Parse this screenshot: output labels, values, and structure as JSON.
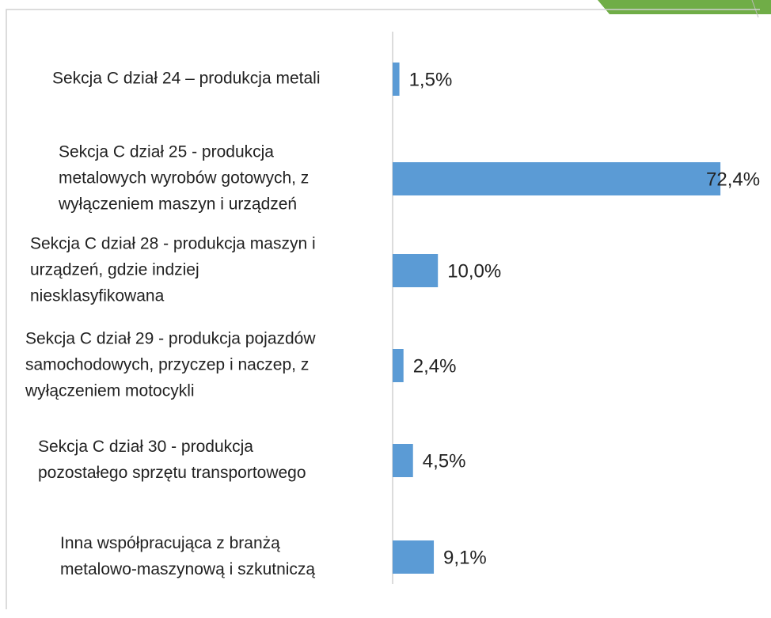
{
  "chart_data": {
    "type": "barh",
    "categories": [
      [
        "Sekcja C dział 24 – produkcja metali"
      ],
      [
        "Sekcja C dział 25 - produkcja",
        "metalowych wyrobów gotowych, z",
        "wyłączeniem maszyn i urządzeń"
      ],
      [
        "Sekcja C dział 28 - produkcja maszyn i",
        "urządzeń, gdzie indziej",
        "niesklasyfikowana"
      ],
      [
        "Sekcja C dział 29 - produkcja pojazdów",
        "samochodowych, przyczep i naczep, z",
        "wyłączeniem motocykli"
      ],
      [
        "Sekcja C dział 30 - produkcja",
        "pozostałego sprzętu transportowego"
      ],
      [
        "Inna współpracująca z branżą",
        "metalowo-maszynową i szkutniczą"
      ]
    ],
    "values": [
      1.5,
      72.4,
      10.0,
      2.4,
      4.5,
      9.1
    ],
    "value_labels": [
      "1,5%",
      "72,4%",
      "10,0%",
      "2,4%",
      "4,5%",
      "9,1%"
    ],
    "color": "#5b9bd5"
  }
}
